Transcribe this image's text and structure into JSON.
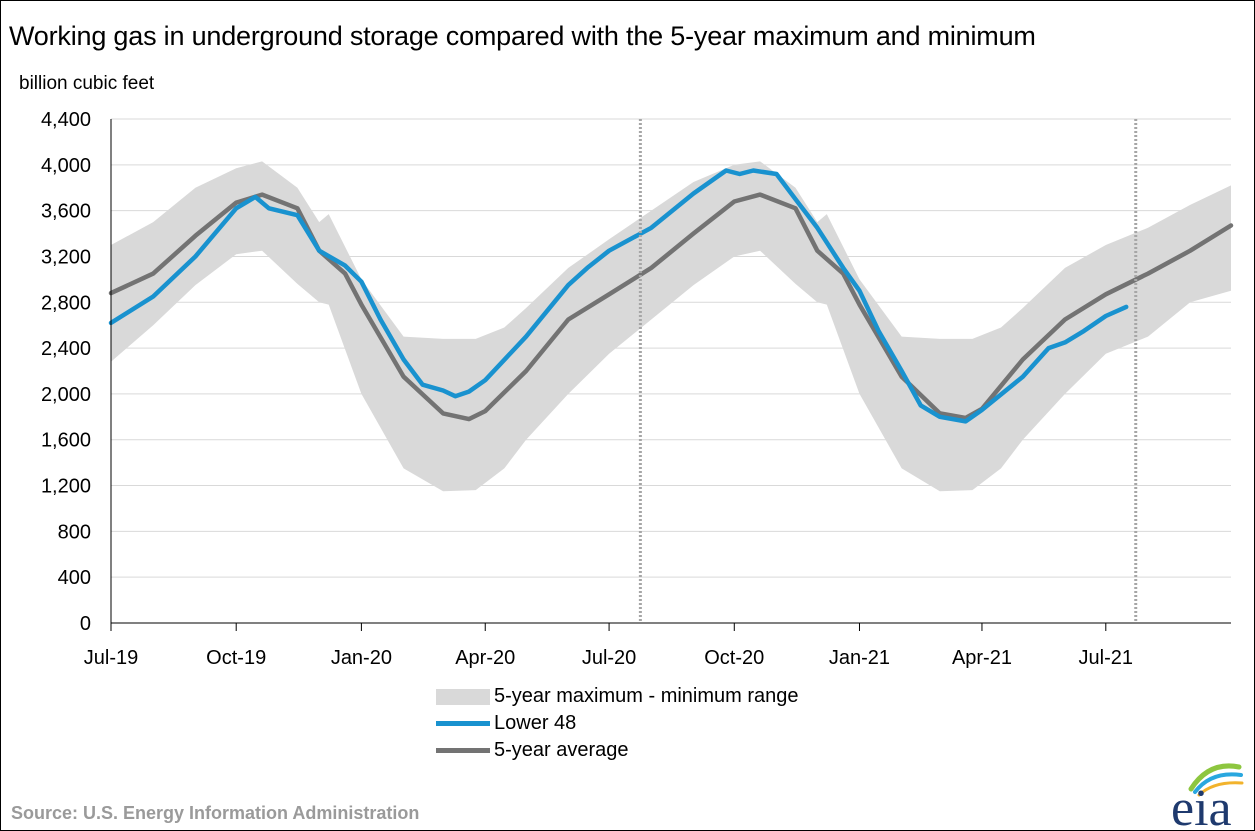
{
  "title": "Working gas in underground  storage compared with the 5-year maximum and minimum",
  "y_unit": "billion cubic feet",
  "source": "Source:  U.S. Energy Information Administration",
  "logo_text": "eia",
  "colors": {
    "range": "#d9d9d9",
    "lower48": "#1992cf",
    "average": "#737373",
    "grid": "#d9d9d9",
    "axis": "#000000",
    "marker_line": "#a6a6a6",
    "logo_text": "#1f3a6e",
    "logo_arc_green": "#8dc63f",
    "logo_arc_blue": "#29a7df",
    "logo_arc_yellow": "#f2b32c"
  },
  "legend": [
    {
      "key": "range",
      "label": "5-year maximum - minimum range"
    },
    {
      "key": "lower48",
      "label": "Lower 48"
    },
    {
      "key": "average",
      "label": "5-year average"
    }
  ],
  "chart_data": {
    "type": "area",
    "title": "Working gas in underground  storage compared with the 5-year maximum and minimum",
    "ylabel": "billion cubic feet",
    "xlabel": "",
    "ylim": [
      0,
      4400
    ],
    "y_ticks": [
      0,
      400,
      800,
      1200,
      1600,
      2000,
      2400,
      2800,
      3200,
      3600,
      4000,
      4400
    ],
    "y_tick_labels": [
      "0",
      "400",
      "800",
      "1,200",
      "1,600",
      "2,000",
      "2,400",
      "2,800",
      "3,200",
      "3,600",
      "4,000",
      "4,400"
    ],
    "xlim": [
      "2019-07-01",
      "2021-10-01"
    ],
    "x_ticks": [
      "2019-07-01",
      "2019-10-01",
      "2020-01-01",
      "2020-04-01",
      "2020-07-01",
      "2020-10-01",
      "2021-01-01",
      "2021-04-01",
      "2021-07-01"
    ],
    "x_tick_labels": [
      "Jul-19",
      "Oct-19",
      "Jan-20",
      "Apr-20",
      "Jul-20",
      "Oct-20",
      "Jan-21",
      "Apr-21",
      "Jul-21"
    ],
    "grid": "horizontal",
    "legend_position": "bottom-center",
    "vertical_markers": [
      "2020-07-24",
      "2021-07-23"
    ],
    "series": [
      {
        "name": "5-year maximum - minimum range",
        "kind": "band",
        "points": [
          {
            "x": "2019-07-01",
            "low": 2280,
            "high": 3300
          },
          {
            "x": "2019-08-01",
            "low": 2600,
            "high": 3500
          },
          {
            "x": "2019-09-01",
            "low": 2950,
            "high": 3800
          },
          {
            "x": "2019-10-01",
            "low": 3220,
            "high": 3970
          },
          {
            "x": "2019-10-20",
            "low": 3250,
            "high": 4030
          },
          {
            "x": "2019-11-15",
            "low": 2960,
            "high": 3800
          },
          {
            "x": "2019-12-01",
            "low": 2800,
            "high": 3500
          },
          {
            "x": "2019-12-08",
            "low": 2780,
            "high": 3570
          },
          {
            "x": "2020-01-01",
            "low": 2000,
            "high": 3000
          },
          {
            "x": "2020-02-01",
            "low": 1350,
            "high": 2500
          },
          {
            "x": "2020-03-01",
            "low": 1150,
            "high": 2480
          },
          {
            "x": "2020-03-25",
            "low": 1160,
            "high": 2480
          },
          {
            "x": "2020-04-15",
            "low": 1350,
            "high": 2580
          },
          {
            "x": "2020-05-01",
            "low": 1600,
            "high": 2750
          },
          {
            "x": "2020-06-01",
            "low": 2000,
            "high": 3100
          },
          {
            "x": "2020-07-01",
            "low": 2350,
            "high": 3350
          },
          {
            "x": "2020-08-01",
            "low": 2650,
            "high": 3600
          },
          {
            "x": "2020-09-01",
            "low": 2950,
            "high": 3850
          },
          {
            "x": "2020-10-01",
            "low": 3200,
            "high": 4000
          },
          {
            "x": "2020-10-20",
            "low": 3250,
            "high": 4030
          },
          {
            "x": "2020-11-15",
            "low": 2960,
            "high": 3800
          },
          {
            "x": "2020-12-01",
            "low": 2800,
            "high": 3500
          },
          {
            "x": "2020-12-08",
            "low": 2780,
            "high": 3570
          },
          {
            "x": "2021-01-01",
            "low": 2000,
            "high": 3000
          },
          {
            "x": "2021-02-01",
            "low": 1350,
            "high": 2500
          },
          {
            "x": "2021-03-01",
            "low": 1150,
            "high": 2480
          },
          {
            "x": "2021-03-25",
            "low": 1160,
            "high": 2480
          },
          {
            "x": "2021-04-15",
            "low": 1350,
            "high": 2580
          },
          {
            "x": "2021-05-01",
            "low": 1600,
            "high": 2750
          },
          {
            "x": "2021-06-01",
            "low": 2000,
            "high": 3100
          },
          {
            "x": "2021-07-01",
            "low": 2350,
            "high": 3300
          },
          {
            "x": "2021-08-01",
            "low": 2500,
            "high": 3450
          },
          {
            "x": "2021-09-01",
            "low": 2800,
            "high": 3650
          },
          {
            "x": "2021-10-01",
            "low": 2900,
            "high": 3820
          }
        ]
      },
      {
        "name": "Lower 48",
        "kind": "line",
        "points": [
          {
            "x": "2019-07-01",
            "y": 2620
          },
          {
            "x": "2019-08-01",
            "y": 2850
          },
          {
            "x": "2019-09-01",
            "y": 3200
          },
          {
            "x": "2019-10-01",
            "y": 3620
          },
          {
            "x": "2019-10-15",
            "y": 3720
          },
          {
            "x": "2019-10-25",
            "y": 3620
          },
          {
            "x": "2019-11-15",
            "y": 3560
          },
          {
            "x": "2019-12-01",
            "y": 3250
          },
          {
            "x": "2019-12-20",
            "y": 3120
          },
          {
            "x": "2020-01-01",
            "y": 2980
          },
          {
            "x": "2020-01-15",
            "y": 2650
          },
          {
            "x": "2020-02-01",
            "y": 2300
          },
          {
            "x": "2020-02-15",
            "y": 2080
          },
          {
            "x": "2020-03-01",
            "y": 2030
          },
          {
            "x": "2020-03-10",
            "y": 1980
          },
          {
            "x": "2020-03-20",
            "y": 2020
          },
          {
            "x": "2020-04-01",
            "y": 2120
          },
          {
            "x": "2020-05-01",
            "y": 2500
          },
          {
            "x": "2020-06-01",
            "y": 2950
          },
          {
            "x": "2020-06-15",
            "y": 3100
          },
          {
            "x": "2020-07-01",
            "y": 3250
          },
          {
            "x": "2020-08-01",
            "y": 3450
          },
          {
            "x": "2020-09-01",
            "y": 3750
          },
          {
            "x": "2020-09-25",
            "y": 3950
          },
          {
            "x": "2020-10-05",
            "y": 3920
          },
          {
            "x": "2020-10-15",
            "y": 3950
          },
          {
            "x": "2020-11-01",
            "y": 3920
          },
          {
            "x": "2020-11-15",
            "y": 3700
          },
          {
            "x": "2020-12-01",
            "y": 3450
          },
          {
            "x": "2020-12-20",
            "y": 3100
          },
          {
            "x": "2021-01-01",
            "y": 2900
          },
          {
            "x": "2021-01-15",
            "y": 2550
          },
          {
            "x": "2021-02-01",
            "y": 2200
          },
          {
            "x": "2021-02-15",
            "y": 1900
          },
          {
            "x": "2021-03-01",
            "y": 1800
          },
          {
            "x": "2021-03-20",
            "y": 1760
          },
          {
            "x": "2021-04-01",
            "y": 1860
          },
          {
            "x": "2021-05-01",
            "y": 2150
          },
          {
            "x": "2021-05-20",
            "y": 2400
          },
          {
            "x": "2021-06-01",
            "y": 2450
          },
          {
            "x": "2021-06-15",
            "y": 2550
          },
          {
            "x": "2021-07-01",
            "y": 2680
          },
          {
            "x": "2021-07-16",
            "y": 2760
          }
        ]
      },
      {
        "name": "5-year average",
        "kind": "line",
        "points": [
          {
            "x": "2019-07-01",
            "y": 2880
          },
          {
            "x": "2019-08-01",
            "y": 3050
          },
          {
            "x": "2019-09-01",
            "y": 3380
          },
          {
            "x": "2019-10-01",
            "y": 3670
          },
          {
            "x": "2019-10-20",
            "y": 3740
          },
          {
            "x": "2019-11-15",
            "y": 3620
          },
          {
            "x": "2019-12-01",
            "y": 3250
          },
          {
            "x": "2019-12-20",
            "y": 3050
          },
          {
            "x": "2020-01-01",
            "y": 2780
          },
          {
            "x": "2020-02-01",
            "y": 2150
          },
          {
            "x": "2020-03-01",
            "y": 1830
          },
          {
            "x": "2020-03-20",
            "y": 1780
          },
          {
            "x": "2020-04-01",
            "y": 1850
          },
          {
            "x": "2020-05-01",
            "y": 2200
          },
          {
            "x": "2020-06-01",
            "y": 2650
          },
          {
            "x": "2020-07-01",
            "y": 2870
          },
          {
            "x": "2020-08-01",
            "y": 3100
          },
          {
            "x": "2020-09-01",
            "y": 3400
          },
          {
            "x": "2020-10-01",
            "y": 3680
          },
          {
            "x": "2020-10-20",
            "y": 3740
          },
          {
            "x": "2020-11-15",
            "y": 3620
          },
          {
            "x": "2020-12-01",
            "y": 3250
          },
          {
            "x": "2020-12-20",
            "y": 3050
          },
          {
            "x": "2021-01-01",
            "y": 2780
          },
          {
            "x": "2021-02-01",
            "y": 2150
          },
          {
            "x": "2021-03-01",
            "y": 1830
          },
          {
            "x": "2021-03-20",
            "y": 1790
          },
          {
            "x": "2021-04-01",
            "y": 1870
          },
          {
            "x": "2021-05-01",
            "y": 2300
          },
          {
            "x": "2021-06-01",
            "y": 2650
          },
          {
            "x": "2021-07-01",
            "y": 2870
          },
          {
            "x": "2021-08-01",
            "y": 3050
          },
          {
            "x": "2021-09-01",
            "y": 3250
          },
          {
            "x": "2021-10-01",
            "y": 3470
          }
        ]
      }
    ]
  }
}
